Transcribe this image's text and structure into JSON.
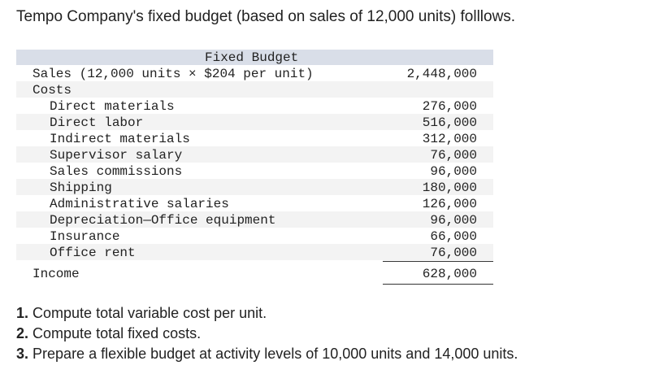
{
  "intro": "Tempo Company's fixed budget (based on sales of 12,000 units) folllows.",
  "table": {
    "header": "Fixed Budget",
    "rows": [
      {
        "label": "Sales (12,000 units × $204 per unit)",
        "value": "2,448,000"
      },
      {
        "label": "Costs"
      },
      {
        "label": "Direct materials",
        "value": "276,000"
      },
      {
        "label": "Direct labor",
        "value": "516,000"
      },
      {
        "label": "Indirect materials",
        "value": "312,000"
      },
      {
        "label": "Supervisor salary",
        "value": "76,000"
      },
      {
        "label": "Sales commissions",
        "value": "96,000"
      },
      {
        "label": "Shipping",
        "value": "180,000"
      },
      {
        "label": "Administrative salaries",
        "value": "126,000"
      },
      {
        "label": "Depreciation—Office equipment",
        "value": "96,000"
      },
      {
        "label": "Insurance",
        "value": "66,000"
      },
      {
        "label": "Office rent",
        "value": "76,000"
      },
      {
        "label": "Income",
        "value": "628,000"
      }
    ]
  },
  "questions": [
    {
      "number": "1.",
      "text": "Compute total variable cost per unit."
    },
    {
      "number": "2.",
      "text": "Compute total fixed costs."
    },
    {
      "number": "3.",
      "text": "Prepare a flexible budget at activity levels of 10,000 units and 14,000 units."
    }
  ]
}
